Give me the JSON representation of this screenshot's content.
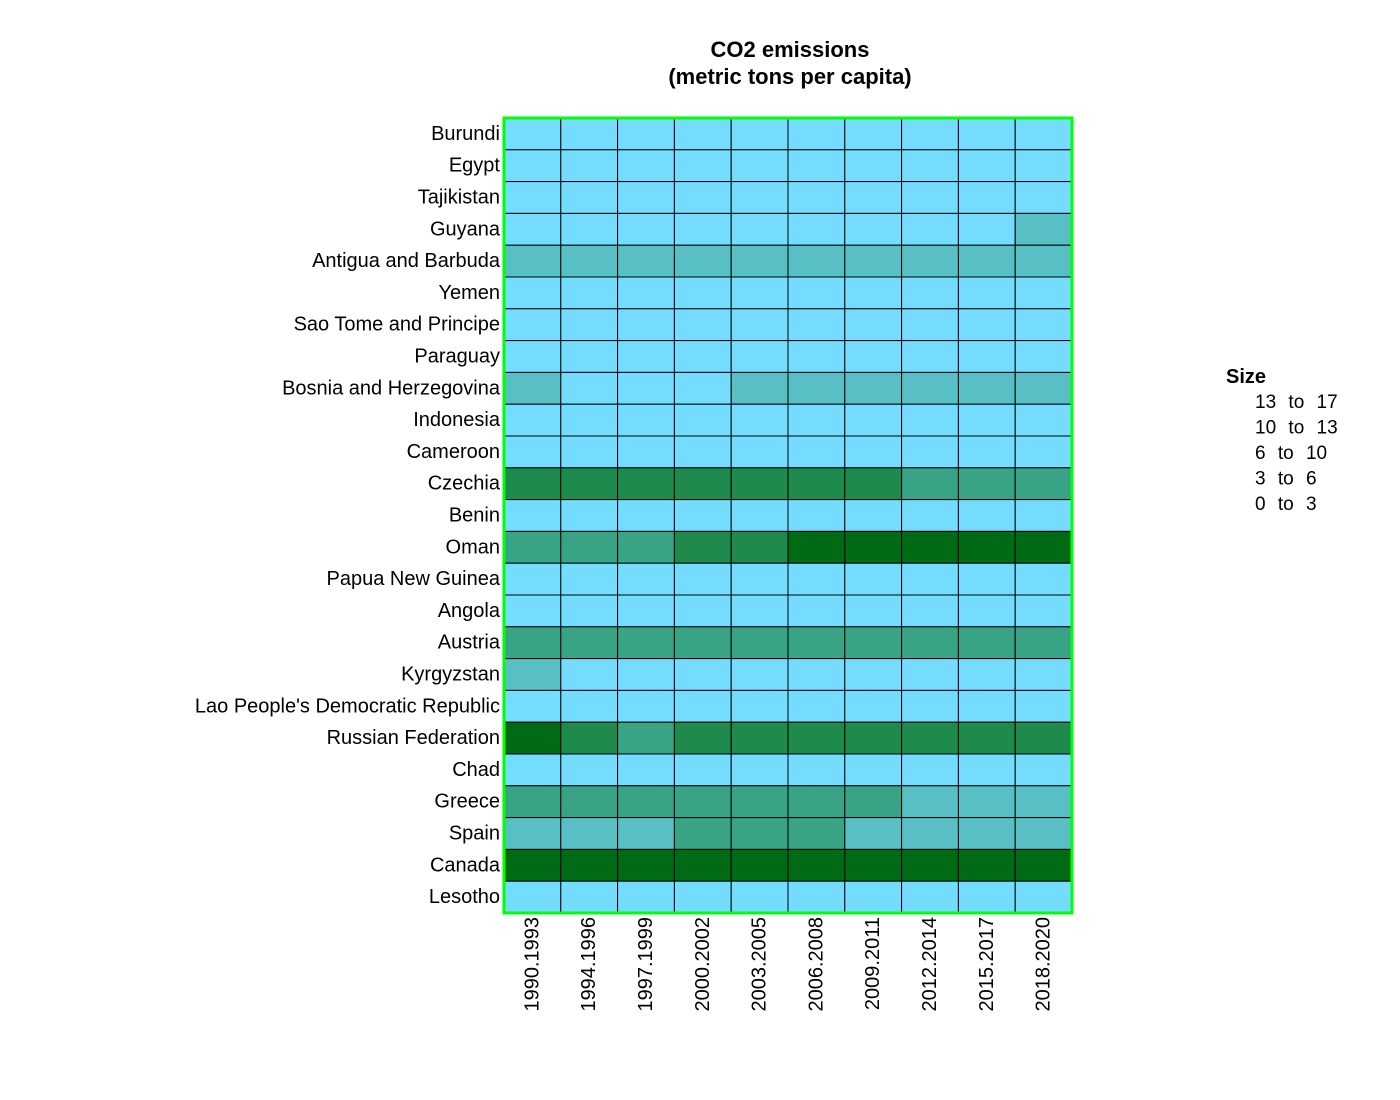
{
  "chart_data": {
    "type": "heatmap",
    "title_lines": [
      "CO2 emissions",
      "(metric tons per capita)"
    ],
    "x": [
      "1990.1993",
      "1994.1996",
      "1997.1999",
      "2000.2002",
      "2003.2005",
      "2006.2008",
      "2009.2011",
      "2012.2014",
      "2015.2017",
      "2018.2020"
    ],
    "y": [
      "Burundi",
      "Egypt",
      "Tajikistan",
      "Guyana",
      "Antigua and Barbuda",
      "Yemen",
      "Sao Tome and Principe",
      "Paraguay",
      "Bosnia and Herzegovina",
      "Indonesia",
      "Cameroon",
      "Czechia",
      "Benin",
      "Oman",
      "Papua New Guinea",
      "Angola",
      "Austria",
      "Kyrgyzstan",
      "Lao People's Democratic Republic",
      "Russian Federation",
      "Chad",
      "Greece",
      "Spain",
      "Canada",
      "Lesotho"
    ],
    "values": [
      [
        0.04,
        0.03,
        0.03,
        0.03,
        0.02,
        0.03,
        0.03,
        0.04,
        0.05,
        0.06
      ],
      [
        1.5,
        1.6,
        1.7,
        1.9,
        2.1,
        2.3,
        2.4,
        2.4,
        2.4,
        2.3
      ],
      [
        2.0,
        0.6,
        0.4,
        0.3,
        0.4,
        0.5,
        0.4,
        0.5,
        0.7,
        1.0
      ],
      [
        1.6,
        2.0,
        2.2,
        2.2,
        2.0,
        2.1,
        2.3,
        2.6,
        2.8,
        3.4
      ],
      [
        4.2,
        4.4,
        4.6,
        4.8,
        5.1,
        5.5,
        5.6,
        5.5,
        5.3,
        5.0
      ],
      [
        0.8,
        0.8,
        0.8,
        0.9,
        1.0,
        1.0,
        0.9,
        0.8,
        0.4,
        0.3
      ],
      [
        0.5,
        0.5,
        0.5,
        0.5,
        0.5,
        0.6,
        0.6,
        0.6,
        0.6,
        0.6
      ],
      [
        0.5,
        0.7,
        0.7,
        0.7,
        0.7,
        0.7,
        0.8,
        0.8,
        1.0,
        1.1
      ],
      [
        3.9,
        1.2,
        2.5,
        2.9,
        4.1,
        5.2,
        5.6,
        5.7,
        5.8,
        5.6
      ],
      [
        0.9,
        1.1,
        1.2,
        1.4,
        1.5,
        1.6,
        1.8,
        2.0,
        2.1,
        2.2
      ],
      [
        0.1,
        0.3,
        0.3,
        0.3,
        0.3,
        0.3,
        0.3,
        0.3,
        0.3,
        0.3
      ],
      [
        12.8,
        12.1,
        11.6,
        11.8,
        11.7,
        11.4,
        10.5,
        9.8,
        9.6,
        8.9
      ],
      [
        0.1,
        0.2,
        0.2,
        0.3,
        0.4,
        0.5,
        0.5,
        0.6,
        0.6,
        0.6
      ],
      [
        6.8,
        7.2,
        8.5,
        10.6,
        11.2,
        14.1,
        15.5,
        15.8,
        15.6,
        14.8
      ],
      [
        0.5,
        0.6,
        0.6,
        0.6,
        0.6,
        0.6,
        0.7,
        0.7,
        0.8,
        0.8
      ],
      [
        0.4,
        0.5,
        0.5,
        0.6,
        0.7,
        0.8,
        0.9,
        1.1,
        1.0,
        0.8
      ],
      [
        7.6,
        7.7,
        7.8,
        8.1,
        8.9,
        8.6,
        7.9,
        7.5,
        7.4,
        7.1
      ],
      [
        4.2,
        1.2,
        1.1,
        1.0,
        1.1,
        1.2,
        1.2,
        1.6,
        1.7,
        1.6
      ],
      [
        0.1,
        0.1,
        0.2,
        0.2,
        0.2,
        0.3,
        0.4,
        0.9,
        2.3,
        2.5
      ],
      [
        14.2,
        11.5,
        9.8,
        10.3,
        10.6,
        11.2,
        11.3,
        11.7,
        11.6,
        12.1
      ],
      [
        0.05,
        0.05,
        0.05,
        0.05,
        0.1,
        0.1,
        0.1,
        0.1,
        0.1,
        0.1
      ],
      [
        7.5,
        7.8,
        8.3,
        8.8,
        9.1,
        8.9,
        7.8,
        5.9,
        5.8,
        5.5
      ],
      [
        5.5,
        5.7,
        5.9,
        6.9,
        7.4,
        7.0,
        5.8,
        5.1,
        5.3,
        4.9
      ],
      [
        15.4,
        15.8,
        16.2,
        16.5,
        16.9,
        16.4,
        15.1,
        14.8,
        14.6,
        14.0
      ],
      [
        0.8,
        0.9,
        1.0,
        1.0,
        1.0,
        1.0,
        1.1,
        1.2,
        1.2,
        1.2
      ]
    ],
    "legend": {
      "title": "Size",
      "position": "right",
      "bins": [
        {
          "label": "13 to 17",
          "min": 13,
          "max": 17,
          "color": "#006B14"
        },
        {
          "label": "10 to 13",
          "min": 10,
          "max": 13,
          "color": "#1E8A4C"
        },
        {
          "label": "6 to 10",
          "min": 6,
          "max": 10,
          "color": "#39A386"
        },
        {
          "label": "3 to 6",
          "min": 3,
          "max": 6,
          "color": "#58C0C4"
        },
        {
          "label": "0 to 3",
          "min": 0,
          "max": 3,
          "color": "#73DCFF"
        }
      ]
    },
    "grid": true,
    "colors": {
      "plot_border": "#00FF00",
      "cell_border": "#000000"
    }
  }
}
